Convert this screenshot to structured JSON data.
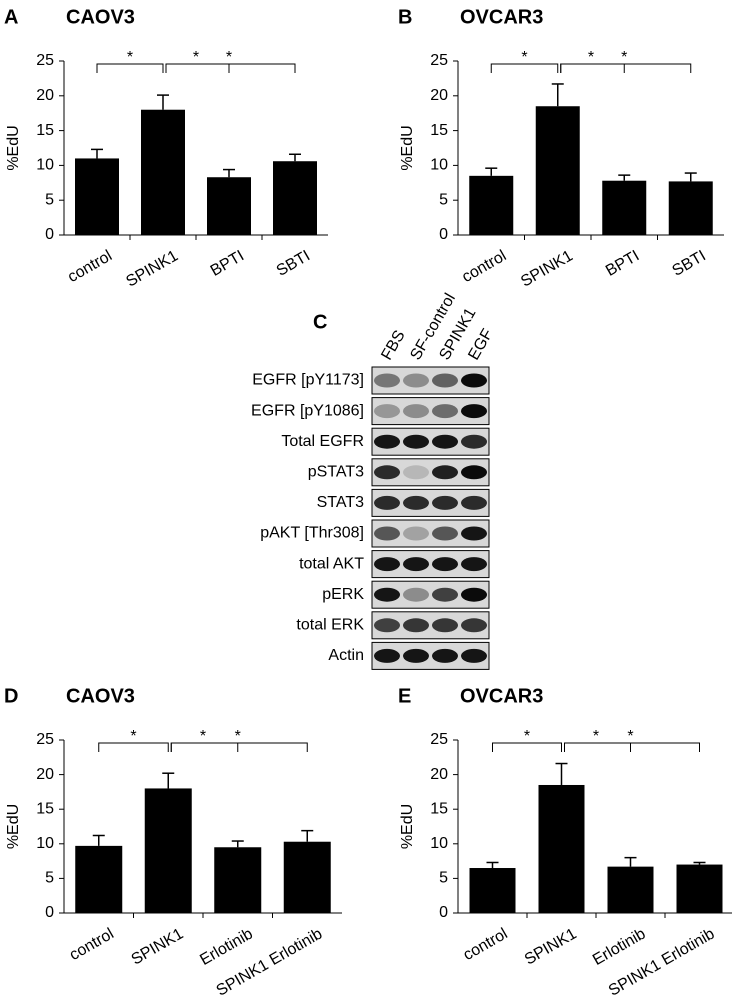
{
  "chart_data": [
    {
      "type": "bar",
      "panel": "A",
      "title": "CAOV3",
      "ylabel": "%EdU",
      "categories": [
        "control",
        "SPINK1",
        "BPTI",
        "SBTI"
      ],
      "values": [
        11,
        18,
        8.3,
        10.6
      ],
      "errors": [
        1.3,
        2.1,
        1.1,
        1.0
      ],
      "color": "#000000",
      "ylim": [
        0,
        25
      ],
      "yticks": [
        0,
        5,
        10,
        15,
        20,
        25
      ],
      "significance": [
        {
          "from": "control",
          "to": "SPINK1",
          "label": "*"
        },
        {
          "from": "SPINK1",
          "to": "BPTI",
          "label": "*"
        },
        {
          "from": "SPINK1",
          "to": "SBTI",
          "label": "*"
        }
      ]
    },
    {
      "type": "bar",
      "panel": "B",
      "title": "OVCAR3",
      "ylabel": "%EdU",
      "categories": [
        "control",
        "SPINK1",
        "BPTI",
        "SBTI"
      ],
      "values": [
        8.5,
        18.5,
        7.8,
        7.7
      ],
      "errors": [
        1.1,
        3.2,
        0.8,
        1.2
      ],
      "color": "#000000",
      "ylim": [
        0,
        25
      ],
      "yticks": [
        0,
        5,
        10,
        15,
        20,
        25
      ],
      "significance": [
        {
          "from": "control",
          "to": "SPINK1",
          "label": "*"
        },
        {
          "from": "SPINK1",
          "to": "BPTI",
          "label": "*"
        },
        {
          "from": "SPINK1",
          "to": "SBTI",
          "label": "*"
        }
      ]
    },
    {
      "type": "bar",
      "panel": "D",
      "title": "CAOV3",
      "ylabel": "%EdU",
      "categories": [
        "control",
        "SPINK1",
        "Erlotinib",
        "SPINK1 Erlotinib"
      ],
      "values": [
        9.7,
        18,
        9.5,
        10.3
      ],
      "errors": [
        1.5,
        2.2,
        0.9,
        1.6
      ],
      "color": "#000000",
      "ylim": [
        0,
        25
      ],
      "yticks": [
        0,
        5,
        10,
        15,
        20,
        25
      ],
      "significance": [
        {
          "from": "control",
          "to": "SPINK1",
          "label": "*"
        },
        {
          "from": "SPINK1",
          "to": "Erlotinib",
          "label": "*"
        },
        {
          "from": "SPINK1",
          "to": "SPINK1 Erlotinib",
          "label": "*"
        }
      ]
    },
    {
      "type": "bar",
      "panel": "E",
      "title": "OVCAR3",
      "ylabel": "%EdU",
      "categories": [
        "control",
        "SPINK1",
        "Erlotinib",
        "SPINK1 Erlotinib"
      ],
      "values": [
        6.5,
        18.5,
        6.7,
        7.0
      ],
      "errors": [
        0.8,
        3.1,
        1.3,
        0.3
      ],
      "color": "#000000",
      "ylim": [
        0,
        25
      ],
      "yticks": [
        0,
        5,
        10,
        15,
        20,
        25
      ],
      "significance": [
        {
          "from": "control",
          "to": "SPINK1",
          "label": "*"
        },
        {
          "from": "SPINK1",
          "to": "Erlotinib",
          "label": "*"
        },
        {
          "from": "SPINK1",
          "to": "SPINK1 Erlotinib",
          "label": "*"
        }
      ]
    }
  ],
  "blot": {
    "panel": "C",
    "lanes": [
      "FBS",
      "SF-control",
      "SPINK1",
      "EGF"
    ],
    "rows": [
      "EGFR [pY1173]",
      "EGFR [pY1086]",
      "Total EGFR",
      "pSTAT3",
      "STAT3",
      "pAKT [Thr308]",
      "total AKT",
      "pERK",
      "total ERK",
      "Actin"
    ]
  }
}
